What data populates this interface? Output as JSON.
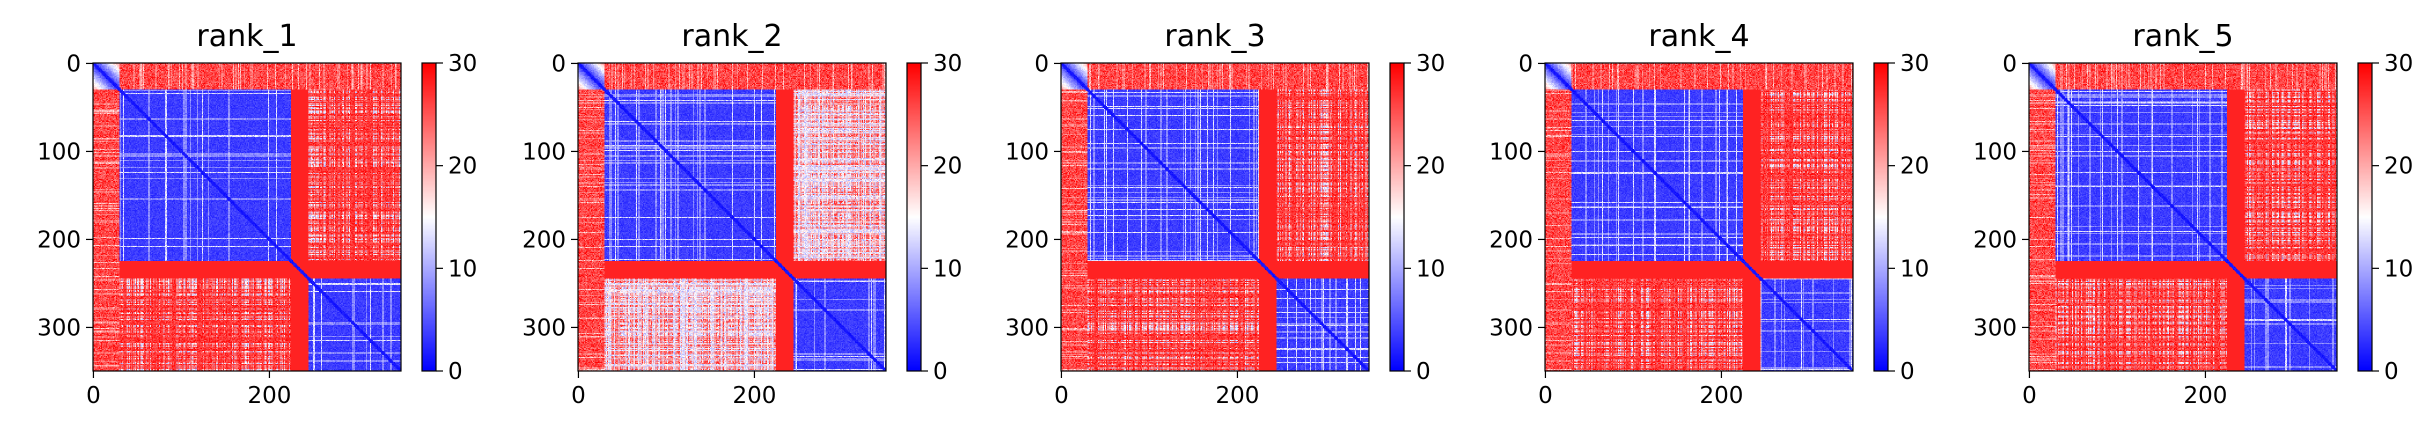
{
  "chart_data": [
    {
      "type": "heatmap",
      "title": "rank_1",
      "variant": 1,
      "n_residues": 350,
      "xticks": [
        "0",
        "200"
      ],
      "yticks": [
        "0",
        "100",
        "200",
        "300"
      ],
      "colorbar": {
        "min": 0,
        "max": 30,
        "ticks": [
          "0",
          "10",
          "20",
          "30"
        ],
        "colors": [
          "#0000ff",
          "#ffffff",
          "#ff0000"
        ]
      },
      "domains": [
        [
          0,
          30
        ],
        [
          30,
          225
        ],
        [
          245,
          350
        ]
      ]
    },
    {
      "type": "heatmap",
      "title": "rank_2",
      "variant": 2,
      "n_residues": 350,
      "xticks": [
        "0",
        "200"
      ],
      "yticks": [
        "0",
        "100",
        "200",
        "300"
      ],
      "colorbar": {
        "min": 0,
        "max": 30,
        "ticks": [
          "0",
          "10",
          "20",
          "30"
        ],
        "colors": [
          "#0000ff",
          "#ffffff",
          "#ff0000"
        ]
      },
      "domains": [
        [
          0,
          30
        ],
        [
          30,
          225
        ],
        [
          245,
          350
        ]
      ]
    },
    {
      "type": "heatmap",
      "title": "rank_3",
      "variant": 3,
      "n_residues": 350,
      "xticks": [
        "0",
        "200"
      ],
      "yticks": [
        "0",
        "100",
        "200",
        "300"
      ],
      "colorbar": {
        "min": 0,
        "max": 30,
        "ticks": [
          "0",
          "10",
          "20",
          "30"
        ],
        "colors": [
          "#0000ff",
          "#ffffff",
          "#ff0000"
        ]
      },
      "domains": [
        [
          0,
          30
        ],
        [
          30,
          225
        ],
        [
          245,
          350
        ]
      ]
    },
    {
      "type": "heatmap",
      "title": "rank_4",
      "variant": 4,
      "n_residues": 350,
      "xticks": [
        "0",
        "200"
      ],
      "yticks": [
        "0",
        "100",
        "200",
        "300"
      ],
      "colorbar": {
        "min": 0,
        "max": 30,
        "ticks": [
          "0",
          "10",
          "20",
          "30"
        ],
        "colors": [
          "#0000ff",
          "#ffffff",
          "#ff0000"
        ]
      },
      "domains": [
        [
          0,
          30
        ],
        [
          30,
          225
        ],
        [
          245,
          350
        ]
      ]
    },
    {
      "type": "heatmap",
      "title": "rank_5",
      "variant": 5,
      "n_residues": 350,
      "xticks": [
        "0",
        "200"
      ],
      "yticks": [
        "0",
        "100",
        "200",
        "300"
      ],
      "colorbar": {
        "min": 0,
        "max": 30,
        "ticks": [
          "0",
          "10",
          "20",
          "30"
        ],
        "colors": [
          "#0000ff",
          "#ffffff",
          "#ff0000"
        ]
      },
      "domains": [
        [
          0,
          30
        ],
        [
          30,
          225
        ],
        [
          245,
          350
        ]
      ]
    }
  ]
}
